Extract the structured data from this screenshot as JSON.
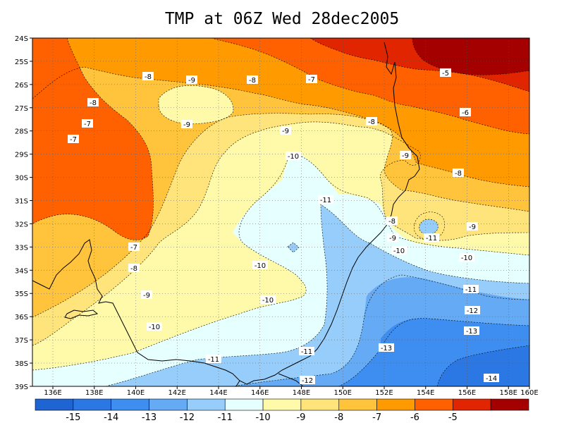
{
  "title": "TMP at 06Z Wed 28dec2005",
  "map": {
    "lon_ticks": [
      "136E",
      "138E",
      "140E",
      "142E",
      "144E",
      "146E",
      "148E",
      "150E",
      "152E",
      "154E",
      "156E",
      "158E",
      "160E"
    ],
    "lat_ticks": [
      "24S",
      "25S",
      "26S",
      "27S",
      "28S",
      "29S",
      "30S",
      "31S",
      "32S",
      "33S",
      "34S",
      "35S",
      "36S",
      "37S",
      "38S",
      "39S"
    ],
    "contour_labels": [
      "-8",
      "-9",
      "-8",
      "-7",
      "-5",
      "-8",
      "-7",
      "-7",
      "-9",
      "-6",
      "-8",
      "-9",
      "-10",
      "-9",
      "-8",
      "-11",
      "-8",
      "-9",
      "-9",
      "-11",
      "-10",
      "-7",
      "-8",
      "-10",
      "-10",
      "-9",
      "-10",
      "-10",
      "-11",
      "-12",
      "-13",
      "-11",
      "-13",
      "-11",
      "-12",
      "-14"
    ]
  },
  "colorbar": {
    "labels": [
      "-15",
      "-14",
      "-13",
      "-12",
      "-11",
      "-10",
      "-9",
      "-8",
      "-7",
      "-6",
      "-5"
    ],
    "colors": [
      "#1e64d2",
      "#2b78e4",
      "#3d8ef0",
      "#64aaf5",
      "#96cdfa",
      "#e6ffff",
      "#fffaaa",
      "#ffe37b",
      "#ffc43c",
      "#ff9a00",
      "#ff6000",
      "#e12500",
      "#a50000"
    ]
  },
  "chart_data": {
    "type": "heatmap",
    "title": "TMP at 06Z Wed 28dec2005",
    "xlabel": "",
    "ylabel": "",
    "x_range": [
      "135E",
      "160E"
    ],
    "y_range": [
      "24S",
      "39S"
    ],
    "levels": [
      -15,
      -14,
      -13,
      -12,
      -11,
      -10,
      -9,
      -8,
      -7,
      -6,
      -5
    ],
    "grid": true
  }
}
